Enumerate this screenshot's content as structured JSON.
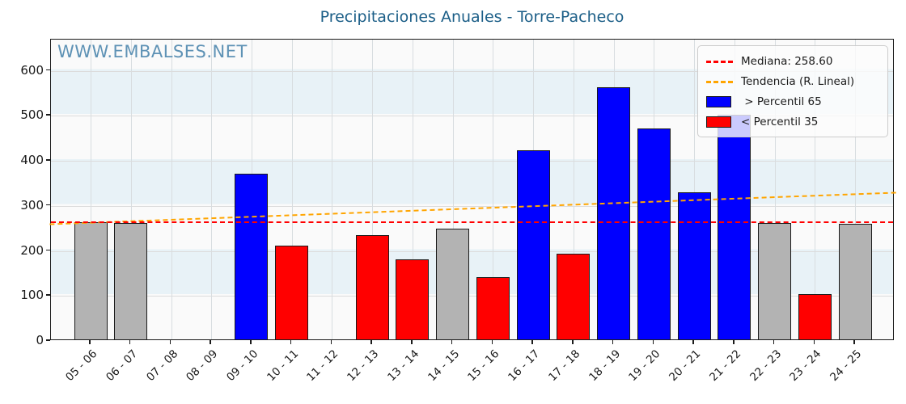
{
  "title": "Precipitaciones Anuales - Torre-Pacheco",
  "watermark": "WWW.EMBALSES.NET",
  "colors": {
    "title": "#1b5e87",
    "watermark": "#5e92b5",
    "above_p65": "#0000ff",
    "below_p35": "#ff0000",
    "mid_percentile": "#b3b3b3",
    "bar_edge": "#1a1a1a",
    "median_line": "#ff0000",
    "trend_line": "#ffa500",
    "band_blue": "#e8f2f7",
    "band_white": "#fafafa"
  },
  "legend": {
    "items": [
      {
        "type": "dashed-line",
        "color": "#ff0000",
        "label": "Mediana: 258.60"
      },
      {
        "type": "dashed-line",
        "color": "#ffa500",
        "label": "Tendencia (R. Lineal)"
      },
      {
        "type": "patch",
        "color": "#0000ff",
        "label": " > Percentil 65"
      },
      {
        "type": "patch",
        "color": "#ff0000",
        "label": "< Percentil 35"
      }
    ]
  },
  "chart_data": {
    "type": "bar",
    "title": "Precipitaciones Anuales - Torre-Pacheco",
    "categories": [
      "05 - 06",
      "06 - 07",
      "07 - 08",
      "08 - 09",
      "09 - 10",
      "10 - 11",
      "11 - 12",
      "12 - 13",
      "13 - 14",
      "14 - 15",
      "15 - 16",
      "16 - 17",
      "17 - 18",
      "18 - 19",
      "19 - 20",
      "20 - 21",
      "21 - 22",
      "22 - 23",
      "23 - 24",
      "24 - 25"
    ],
    "values": [
      261,
      258,
      null,
      null,
      367,
      209,
      null,
      232,
      178,
      246,
      138,
      420,
      190,
      559,
      469,
      326,
      499,
      259,
      100,
      256
    ],
    "bar_classes": [
      "mid",
      "mid",
      null,
      null,
      "above",
      "below",
      null,
      "below",
      "below",
      "mid",
      "below",
      "above",
      "below",
      "above",
      "above",
      "above",
      "above",
      "mid",
      "below",
      "mid"
    ],
    "median": 258.6,
    "trend": {
      "start": 253,
      "end": 323
    },
    "xlabel": "",
    "ylabel": "",
    "ylim": [
      0,
      669
    ],
    "yticks": [
      0,
      100,
      200,
      300,
      400,
      500,
      600
    ],
    "grid": true,
    "legend_position": "upper right"
  }
}
